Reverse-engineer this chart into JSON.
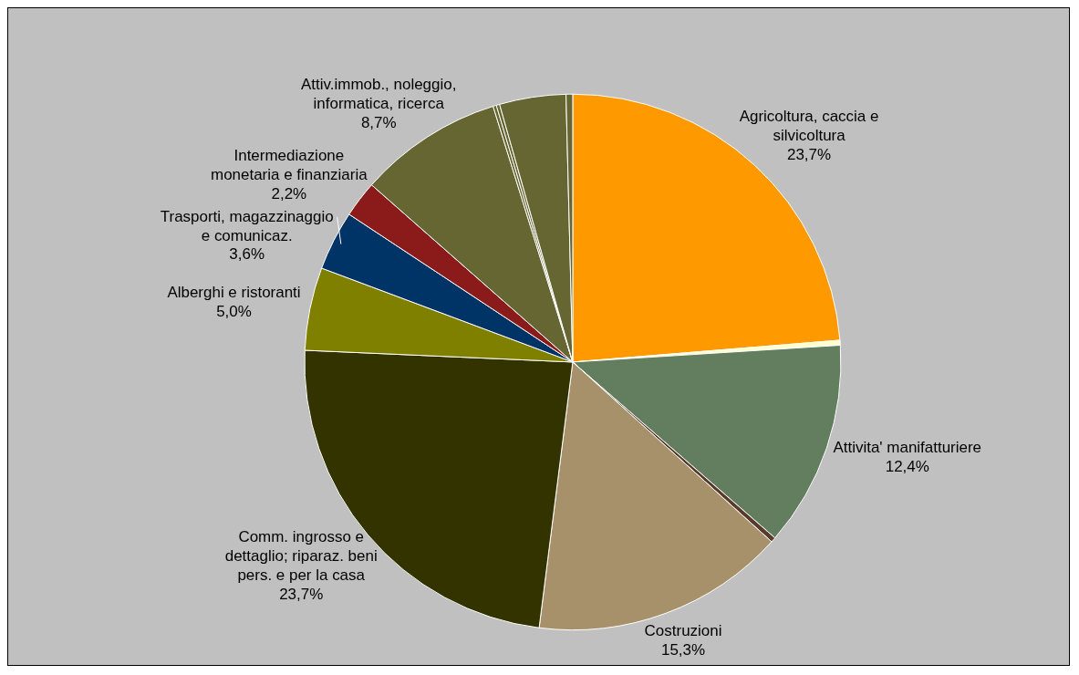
{
  "chart_data": {
    "type": "pie",
    "categories": [
      "Agricoltura, caccia e silvicoltura",
      null,
      "Attivita' manifatturiere",
      null,
      "Costruzioni",
      "Comm. ingrosso e dettaglio; riparaz. beni pers. e per la casa",
      "Alberghi e ristoranti",
      "Trasporti, magazzinaggio e comunicaz.",
      "Intermediazione monetaria e finanziaria",
      "Attiv.immob., noleggio, informatica, ricerca",
      null,
      null,
      null,
      null
    ],
    "values": [
      23.7,
      0.3,
      12.4,
      0.3,
      15.3,
      23.7,
      5.0,
      3.6,
      2.2,
      8.7,
      0.2,
      0.2,
      4.0,
      0.4
    ],
    "value_labels": [
      "23,7%",
      null,
      "12,4%",
      null,
      "15,3%",
      "23,7%",
      "5,0%",
      "3,6%",
      "2,2%",
      "8,7%",
      null,
      null,
      null,
      null
    ],
    "colors": [
      "#ff9900",
      "#ffffcc",
      "#637d5f",
      "#5a3b2b",
      "#a6916b",
      "#333300",
      "#808000",
      "#003366",
      "#8b1a1a",
      "#666633",
      "#666633",
      "#666633",
      "#666633",
      "#666633"
    ],
    "legend": false
  }
}
